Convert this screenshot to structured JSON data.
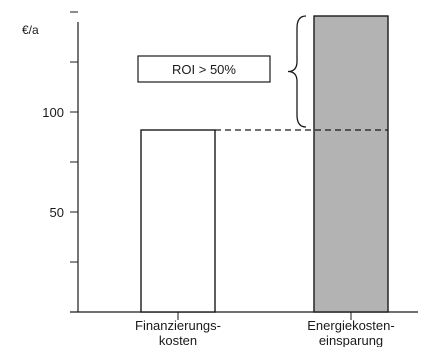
{
  "chart_data": {
    "type": "bar",
    "title": "",
    "xlabel": "",
    "ylabel": "€/a",
    "ylim": [
      0,
      150
    ],
    "yticks": [
      50,
      100
    ],
    "categories": [
      [
        "Finanzierungs-",
        "kosten"
      ],
      [
        "Energiekosten-",
        "einsparung"
      ]
    ],
    "values": [
      91,
      148
    ],
    "bar_colors": [
      "#ffffff",
      "#b3b3b3"
    ],
    "reference_line": {
      "value": 91,
      "style": "dashed"
    },
    "annotation": {
      "text": "ROI > 50%",
      "brace_from": 91,
      "brace_to": 148
    },
    "grid": false,
    "legend": "none"
  }
}
